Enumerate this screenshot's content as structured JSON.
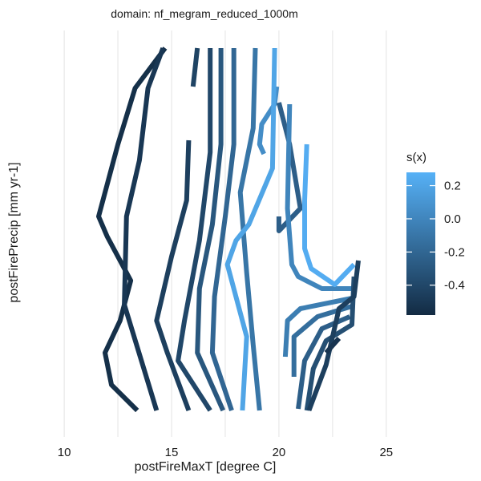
{
  "chart_data": {
    "type": "line",
    "subtype": "contour",
    "title": "domain: nf_megram_reduced_1000m",
    "xlabel": "postFireMaxT [degree C]",
    "ylabel": "postFirePrecip [mm yr-1]",
    "xlim": [
      8.8,
      26.8
    ],
    "xticks": [
      10,
      15,
      20,
      25
    ],
    "xgrid_minor": [
      12.5,
      17.5,
      22.5
    ],
    "yticks_shown": false,
    "grid": "vertical-only",
    "legend": {
      "title": "s(x)",
      "placement": "right",
      "range": [
        -0.58,
        0.28
      ],
      "ticks": [
        0.2,
        0.0,
        -0.2,
        -0.4
      ],
      "tick_labels": [
        "0.2",
        "0.0",
        "-0.2",
        "-0.4"
      ],
      "color_low": "#132b43",
      "color_high": "#56b1f7"
    },
    "series": [
      {
        "level": -0.55,
        "x": [
          14.7,
          13.3,
          12.5,
          11.6,
          12.0,
          13.1,
          12.6,
          11.9,
          12.2,
          13.4
        ]
      },
      {
        "level": -0.5,
        "x": [
          14.6,
          13.9,
          13.5,
          12.9,
          12.8,
          14.3
        ]
      },
      {
        "level": -0.45,
        "x": [
          15.8,
          15.7,
          15.0,
          14.3,
          14.8,
          15.8
        ]
      },
      {
        "level": -0.42,
        "x": [
          16.0,
          16.2
        ]
      },
      {
        "level": -0.4,
        "x": [
          16.8,
          16.8,
          16.3,
          15.6,
          15.3,
          16.8
        ]
      },
      {
        "level": -0.3,
        "x": [
          17.3,
          17.3,
          16.9,
          16.3,
          16.2,
          17.4
        ]
      },
      {
        "level": -0.2,
        "x": [
          17.9,
          17.9,
          17.5,
          17.0,
          16.9,
          17.8
        ]
      },
      {
        "level": -0.1,
        "x": [
          18.9,
          18.8,
          18.2,
          18.5,
          18.8,
          19.1
        ]
      },
      {
        "level": 0.05,
        "x": [
          19.9,
          19.8,
          19.2,
          19.1,
          19.3
        ]
      },
      {
        "level": 0.2,
        "x": [
          19.8,
          19.7,
          18.6,
          18.0,
          17.6,
          18.5,
          18.3
        ]
      },
      {
        "level": -0.25,
        "x": [
          20.0,
          20.5,
          21.0,
          20.0,
          20.0
        ]
      },
      {
        "level": 0.0,
        "x": [
          20.5,
          20.4,
          20.6,
          20.9,
          22.0,
          23.4
        ]
      },
      {
        "level": 0.25,
        "x": [
          21.3,
          21.2,
          21.2,
          21.5,
          22.6,
          23.5
        ]
      },
      {
        "level": -0.05,
        "x": [
          23.4,
          21.0,
          20.4,
          20.3
        ]
      },
      {
        "level": -0.15,
        "x": [
          23.4,
          21.8,
          20.7,
          20.7
        ]
      },
      {
        "level": -0.25,
        "x": [
          23.3,
          22.0,
          21.2,
          20.9
        ]
      },
      {
        "level": -0.35,
        "x": [
          23.5,
          23.4,
          22.2,
          21.6,
          21.3
        ]
      },
      {
        "level": -0.45,
        "x": [
          23.7,
          23.5,
          22.8,
          22.2,
          21.4
        ]
      },
      {
        "level": -0.52,
        "x": [
          22.8,
          22.2
        ]
      }
    ]
  }
}
